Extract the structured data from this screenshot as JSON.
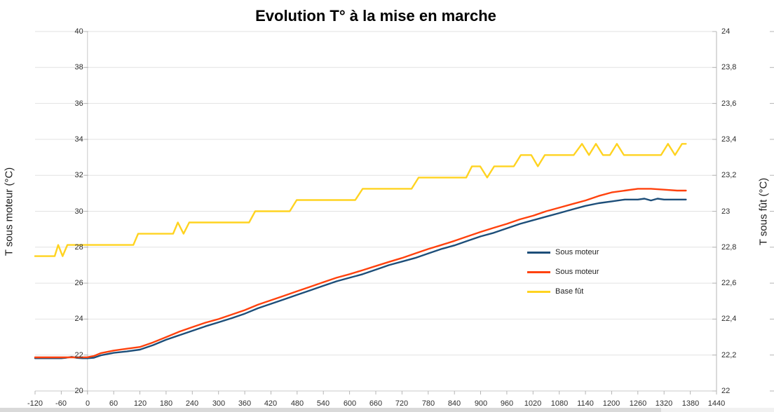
{
  "title": "Evolution T° à la mise en marche",
  "colors": {
    "series_blue": "#1d4e79",
    "series_red": "#ff420e",
    "series_yellow": "#ffd320",
    "grid": "#e2e2e2",
    "axis": "#b5b5b5",
    "zero_axis": "#c9c9c9",
    "tick_text": "#2e2e2e",
    "scrollbar_track": "#f1f1f1",
    "scrollbar_thumb": "#d9d9d9"
  },
  "chart_data": {
    "type": "line",
    "title": "Evolution T° à la mise en marche",
    "grid": "horizontal",
    "x_axis": {
      "min": -120,
      "max": 1440,
      "step": 60,
      "tick_values": [
        -120,
        -60,
        0,
        60,
        120,
        180,
        240,
        300,
        360,
        420,
        480,
        540,
        600,
        660,
        720,
        780,
        840,
        900,
        960,
        1020,
        1080,
        1140,
        1200,
        1260,
        1320,
        1380,
        1440
      ],
      "tick_labels": [
        "-120",
        "-60",
        "0",
        "60",
        "120",
        "180",
        "240",
        "300",
        "360",
        "420",
        "480",
        "540",
        "600",
        "660",
        "720",
        "780",
        "840",
        "900",
        "960",
        "1020",
        "1080",
        "1140",
        "1200",
        "1260",
        "1320",
        "1380",
        "1440"
      ]
    },
    "left_axis": {
      "label": "T sous moteur (°C)",
      "min": 20,
      "max": 40,
      "step": 2,
      "tick_values": [
        40,
        38,
        36,
        34,
        32,
        30,
        28,
        26,
        24,
        22,
        20
      ],
      "tick_labels": [
        "40",
        "38",
        "36",
        "34",
        "32",
        "30",
        "28",
        "26",
        "24",
        "22",
        "20"
      ]
    },
    "right_axis": {
      "label": "T sous fût (°C)",
      "min": 22,
      "max": 24,
      "step": 0.2,
      "tick_values": [
        24,
        23.8,
        23.6,
        23.4,
        23.2,
        23,
        22.8,
        22.6,
        22.4,
        22.2,
        22
      ],
      "tick_labels": [
        "24",
        "23,8",
        "23,6",
        "23,4",
        "23,2",
        "23",
        "22,8",
        "22,6",
        "22,4",
        "22,2",
        "22"
      ]
    },
    "legend": {
      "position": "middle-right",
      "entries": [
        "Sous moteur",
        "Sous moteur",
        "Base fût"
      ]
    },
    "series": [
      {
        "name": "Sous moteur",
        "color": "#1d4e79",
        "axis": "left",
        "points": [
          [
            -120,
            21.82
          ],
          [
            -90,
            21.82
          ],
          [
            -60,
            21.82
          ],
          [
            -48,
            21.85
          ],
          [
            -36,
            21.9
          ],
          [
            -24,
            21.84
          ],
          [
            -12,
            21.82
          ],
          [
            0,
            21.82
          ],
          [
            15,
            21.85
          ],
          [
            30,
            21.98
          ],
          [
            60,
            22.12
          ],
          [
            90,
            22.2
          ],
          [
            120,
            22.3
          ],
          [
            150,
            22.55
          ],
          [
            180,
            22.85
          ],
          [
            210,
            23.1
          ],
          [
            240,
            23.35
          ],
          [
            270,
            23.6
          ],
          [
            300,
            23.82
          ],
          [
            330,
            24.05
          ],
          [
            360,
            24.3
          ],
          [
            390,
            24.6
          ],
          [
            420,
            24.85
          ],
          [
            450,
            25.1
          ],
          [
            480,
            25.35
          ],
          [
            510,
            25.6
          ],
          [
            540,
            25.85
          ],
          [
            570,
            26.1
          ],
          [
            600,
            26.3
          ],
          [
            630,
            26.5
          ],
          [
            660,
            26.75
          ],
          [
            690,
            27.0
          ],
          [
            720,
            27.2
          ],
          [
            750,
            27.4
          ],
          [
            780,
            27.65
          ],
          [
            810,
            27.9
          ],
          [
            840,
            28.1
          ],
          [
            870,
            28.35
          ],
          [
            900,
            28.6
          ],
          [
            930,
            28.8
          ],
          [
            960,
            29.05
          ],
          [
            990,
            29.3
          ],
          [
            1020,
            29.5
          ],
          [
            1050,
            29.7
          ],
          [
            1080,
            29.9
          ],
          [
            1110,
            30.1
          ],
          [
            1140,
            30.3
          ],
          [
            1170,
            30.45
          ],
          [
            1200,
            30.55
          ],
          [
            1230,
            30.65
          ],
          [
            1260,
            30.65
          ],
          [
            1275,
            30.7
          ],
          [
            1290,
            30.6
          ],
          [
            1305,
            30.7
          ],
          [
            1320,
            30.65
          ],
          [
            1350,
            30.65
          ],
          [
            1370,
            30.65
          ]
        ]
      },
      {
        "name": "Sous moteur",
        "color": "#ff420e",
        "axis": "left",
        "points": [
          [
            -120,
            21.87
          ],
          [
            -90,
            21.87
          ],
          [
            -60,
            21.87
          ],
          [
            -30,
            21.87
          ],
          [
            0,
            21.88
          ],
          [
            15,
            21.95
          ],
          [
            30,
            22.1
          ],
          [
            60,
            22.25
          ],
          [
            90,
            22.35
          ],
          [
            120,
            22.45
          ],
          [
            150,
            22.7
          ],
          [
            180,
            23.0
          ],
          [
            210,
            23.3
          ],
          [
            240,
            23.55
          ],
          [
            270,
            23.8
          ],
          [
            300,
            24.0
          ],
          [
            330,
            24.25
          ],
          [
            360,
            24.5
          ],
          [
            390,
            24.8
          ],
          [
            420,
            25.05
          ],
          [
            450,
            25.3
          ],
          [
            480,
            25.55
          ],
          [
            510,
            25.8
          ],
          [
            540,
            26.05
          ],
          [
            570,
            26.3
          ],
          [
            600,
            26.5
          ],
          [
            630,
            26.72
          ],
          [
            660,
            26.95
          ],
          [
            690,
            27.18
          ],
          [
            720,
            27.4
          ],
          [
            750,
            27.65
          ],
          [
            780,
            27.9
          ],
          [
            810,
            28.12
          ],
          [
            840,
            28.35
          ],
          [
            870,
            28.6
          ],
          [
            900,
            28.85
          ],
          [
            930,
            29.08
          ],
          [
            960,
            29.3
          ],
          [
            990,
            29.55
          ],
          [
            1020,
            29.75
          ],
          [
            1050,
            30.0
          ],
          [
            1080,
            30.2
          ],
          [
            1110,
            30.4
          ],
          [
            1140,
            30.6
          ],
          [
            1170,
            30.85
          ],
          [
            1200,
            31.05
          ],
          [
            1230,
            31.15
          ],
          [
            1260,
            31.25
          ],
          [
            1290,
            31.25
          ],
          [
            1320,
            31.2
          ],
          [
            1350,
            31.15
          ],
          [
            1370,
            31.15
          ]
        ]
      },
      {
        "name": "Base fût",
        "color": "#ffd320",
        "axis": "right",
        "points": [
          [
            -120,
            22.75
          ],
          [
            -75,
            22.75
          ],
          [
            -67,
            22.8125
          ],
          [
            -57,
            22.75
          ],
          [
            -46,
            22.8125
          ],
          [
            105,
            22.8125
          ],
          [
            116,
            22.875
          ],
          [
            196,
            22.875
          ],
          [
            207,
            22.9375
          ],
          [
            220,
            22.875
          ],
          [
            233,
            22.9375
          ],
          [
            370,
            22.9375
          ],
          [
            384,
            23.0
          ],
          [
            463,
            23.0
          ],
          [
            479,
            23.0625
          ],
          [
            613,
            23.0625
          ],
          [
            630,
            23.125
          ],
          [
            742,
            23.125
          ],
          [
            758,
            23.1875
          ],
          [
            867,
            23.1875
          ],
          [
            880,
            23.25
          ],
          [
            899,
            23.25
          ],
          [
            915,
            23.1875
          ],
          [
            931,
            23.25
          ],
          [
            976,
            23.25
          ],
          [
            992,
            23.3125
          ],
          [
            1016,
            23.3125
          ],
          [
            1031,
            23.25
          ],
          [
            1047,
            23.3125
          ],
          [
            1113,
            23.3125
          ],
          [
            1132,
            23.375
          ],
          [
            1148,
            23.3125
          ],
          [
            1164,
            23.375
          ],
          [
            1180,
            23.3125
          ],
          [
            1196,
            23.3125
          ],
          [
            1212,
            23.375
          ],
          [
            1228,
            23.3125
          ],
          [
            1313,
            23.3125
          ],
          [
            1329,
            23.375
          ],
          [
            1345,
            23.3125
          ],
          [
            1361,
            23.375
          ],
          [
            1370,
            23.375
          ]
        ]
      }
    ]
  }
}
